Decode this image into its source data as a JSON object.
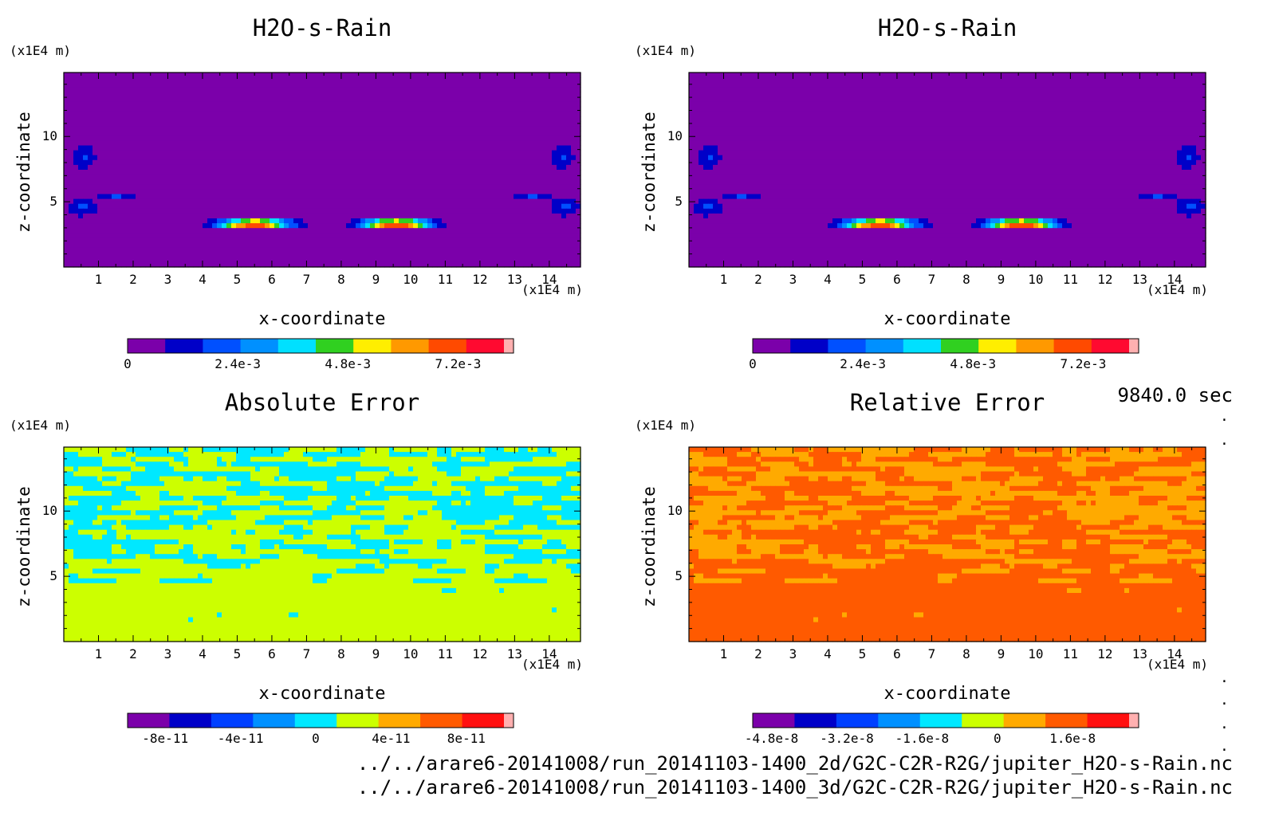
{
  "chart_data": [
    {
      "type": "heatmap",
      "title": "H2O-s-Rain",
      "xlabel": "x-coordinate",
      "ylabel": "z-coordinate",
      "x_units": "(x1E4 m)",
      "y_units": "(x1E4 m)",
      "xlim": [
        0,
        14.9
      ],
      "ylim": [
        0,
        14.9
      ],
      "x_ticks": [
        "1",
        "2",
        "3",
        "4",
        "5",
        "6",
        "7",
        "8",
        "9",
        "10",
        "11",
        "12",
        "13",
        "14"
      ],
      "y_ticks": [
        "5",
        "10"
      ],
      "field": "rain",
      "colorbar": {
        "labels": [
          "0",
          "2.4e-3",
          "4.8e-3",
          "7.2e-3"
        ],
        "label_values": [
          0,
          0.0024,
          0.0048,
          0.0072
        ],
        "min": 0,
        "max": 0.0082,
        "colors": [
          "#7b00aa",
          "#0000c8",
          "#0050ff",
          "#0090ff",
          "#00e0ff",
          "#30d020",
          "#ffee00",
          "#ff9900",
          "#ff4a00",
          "#ff0a30",
          "#ffb0b0"
        ]
      }
    },
    {
      "type": "heatmap",
      "title": "H2O-s-Rain",
      "xlabel": "x-coordinate",
      "ylabel": "z-coordinate",
      "x_units": "(x1E4 m)",
      "y_units": "(x1E4 m)",
      "xlim": [
        0,
        14.9
      ],
      "ylim": [
        0,
        14.9
      ],
      "x_ticks": [
        "1",
        "2",
        "3",
        "4",
        "5",
        "6",
        "7",
        "8",
        "9",
        "10",
        "11",
        "12",
        "13",
        "14"
      ],
      "y_ticks": [
        "5",
        "10"
      ],
      "field": "rain",
      "colorbar": {
        "labels": [
          "0",
          "2.4e-3",
          "4.8e-3",
          "7.2e-3"
        ],
        "label_values": [
          0,
          0.0024,
          0.0048,
          0.0072
        ],
        "min": 0,
        "max": 0.0082,
        "colors": [
          "#7b00aa",
          "#0000c8",
          "#0050ff",
          "#0090ff",
          "#00e0ff",
          "#30d020",
          "#ffee00",
          "#ff9900",
          "#ff4a00",
          "#ff0a30",
          "#ffb0b0"
        ]
      }
    },
    {
      "type": "heatmap",
      "title": "Absolute Error",
      "xlabel": "x-coordinate",
      "ylabel": "z-coordinate",
      "x_units": "(x1E4 m)",
      "y_units": "(x1E4 m)",
      "xlim": [
        0,
        14.9
      ],
      "ylim": [
        0,
        14.9
      ],
      "x_ticks": [
        "1",
        "2",
        "3",
        "4",
        "5",
        "6",
        "7",
        "8",
        "9",
        "10",
        "11",
        "12",
        "13",
        "14"
      ],
      "y_ticks": [
        "5",
        "10"
      ],
      "field": "abs_error",
      "two_level_colors": [
        "#ccff00",
        "#00e8ff"
      ],
      "colorbar": {
        "labels": [
          "-8e-11",
          "-4e-11",
          "0",
          "4e-11",
          "8e-11"
        ],
        "label_values": [
          -8e-11,
          -4e-11,
          0,
          4e-11,
          8e-11
        ],
        "min": -1e-10,
        "max": 1e-10,
        "colors": [
          "#7b00aa",
          "#0000c8",
          "#0040ff",
          "#0090ff",
          "#00e8ff",
          "#ccff00",
          "#ffaa00",
          "#ff5a00",
          "#ff1010",
          "#ffb0b0"
        ]
      }
    },
    {
      "type": "heatmap",
      "title": "Relative Error",
      "xlabel": "x-coordinate",
      "ylabel": "z-coordinate",
      "x_units": "(x1E4 m)",
      "y_units": "(x1E4 m)",
      "xlim": [
        0,
        14.9
      ],
      "ylim": [
        0,
        14.9
      ],
      "x_ticks": [
        "1",
        "2",
        "3",
        "4",
        "5",
        "6",
        "7",
        "8",
        "9",
        "10",
        "11",
        "12",
        "13",
        "14"
      ],
      "y_ticks": [
        "5",
        "10"
      ],
      "field": "rel_error",
      "two_level_colors": [
        "#ff5a00",
        "#ffaa00"
      ],
      "colorbar": {
        "labels": [
          "-4.8e-8",
          "-3.2e-8",
          "-1.6e-8",
          "0",
          "1.6e-8"
        ],
        "label_values": [
          -4.8e-08,
          -3.2e-08,
          -1.6e-08,
          0,
          1.6e-08
        ],
        "min": -5.2e-08,
        "max": 2.8e-08,
        "colors": [
          "#7b00aa",
          "#0000c8",
          "#0040ff",
          "#0090ff",
          "#00e8ff",
          "#ccff00",
          "#ffaa00",
          "#ff5a00",
          "#ff1010",
          "#ffb0b0"
        ]
      }
    }
  ],
  "time_label": "9840.0 sec",
  "files": [
    "../../arare6-20141008/run_20141103-1400_2d/G2C-C2R-R2G/jupiter_H2O-s-Rain.nc",
    "../../arare6-20141008/run_20141103-1400_3d/G2C-C2R-R2G/jupiter_H2O-s-Rain.nc"
  ]
}
